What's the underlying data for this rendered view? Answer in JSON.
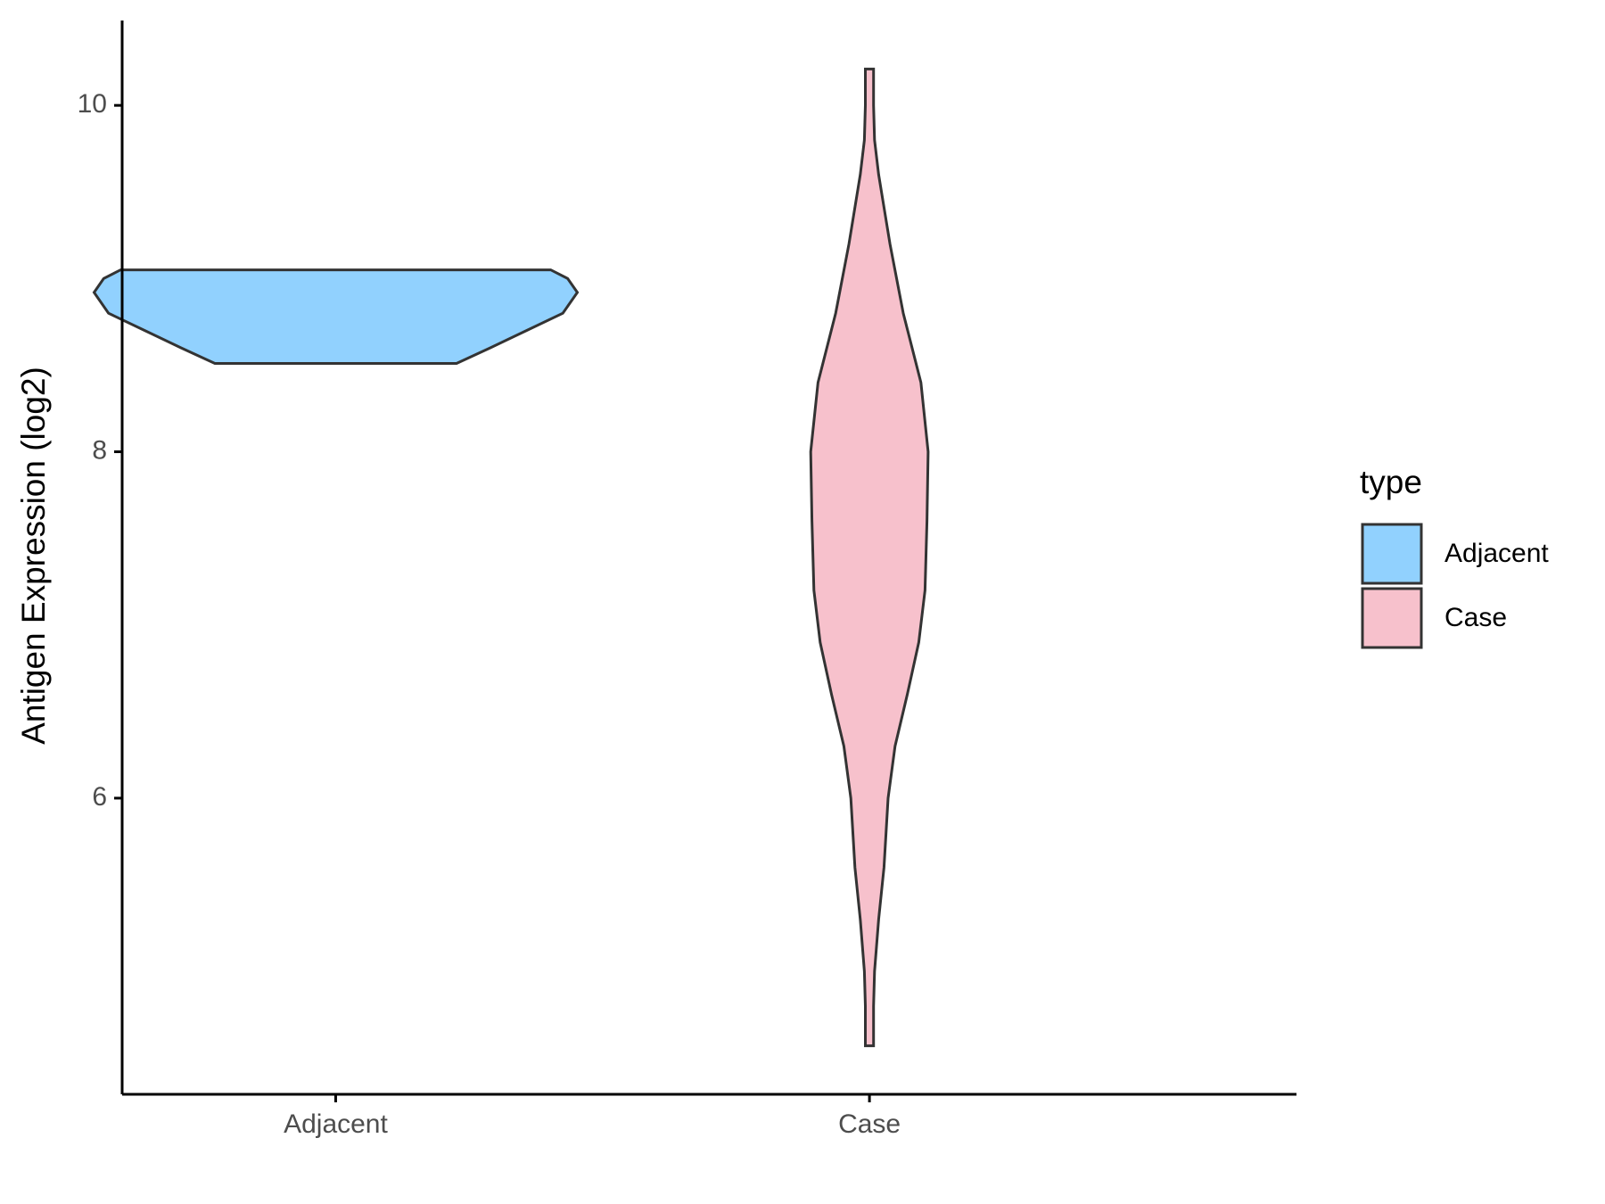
{
  "chart_data": {
    "type": "violin",
    "y_label": "Antigen Expression (log2)",
    "categories": [
      "Adjacent",
      "Case"
    ],
    "legend_title": "type",
    "legend": "right",
    "ylim": [
      4.29,
      10.49
    ],
    "yticks": [
      6,
      8,
      10
    ],
    "series": [
      {
        "name": "Adjacent",
        "color": "#91d1fe",
        "y": [
          8.51,
          8.6,
          8.7,
          8.8,
          8.92,
          9.0,
          9.05
        ],
        "density": [
          0.5,
          0.64,
          0.79,
          0.94,
          1.0,
          0.96,
          0.89
        ]
      },
      {
        "name": "Case",
        "color": "#f7c1cc",
        "y": [
          4.57,
          4.8,
          5.0,
          5.3,
          5.6,
          6.0,
          6.3,
          6.6,
          6.9,
          7.2,
          7.6,
          8.0,
          8.4,
          8.8,
          9.2,
          9.6,
          9.8,
          10.0,
          10.21
        ],
        "density": [
          0.017,
          0.017,
          0.021,
          0.038,
          0.06,
          0.077,
          0.106,
          0.157,
          0.204,
          0.23,
          0.238,
          0.243,
          0.213,
          0.14,
          0.085,
          0.038,
          0.021,
          0.017,
          0.017
        ]
      }
    ]
  }
}
